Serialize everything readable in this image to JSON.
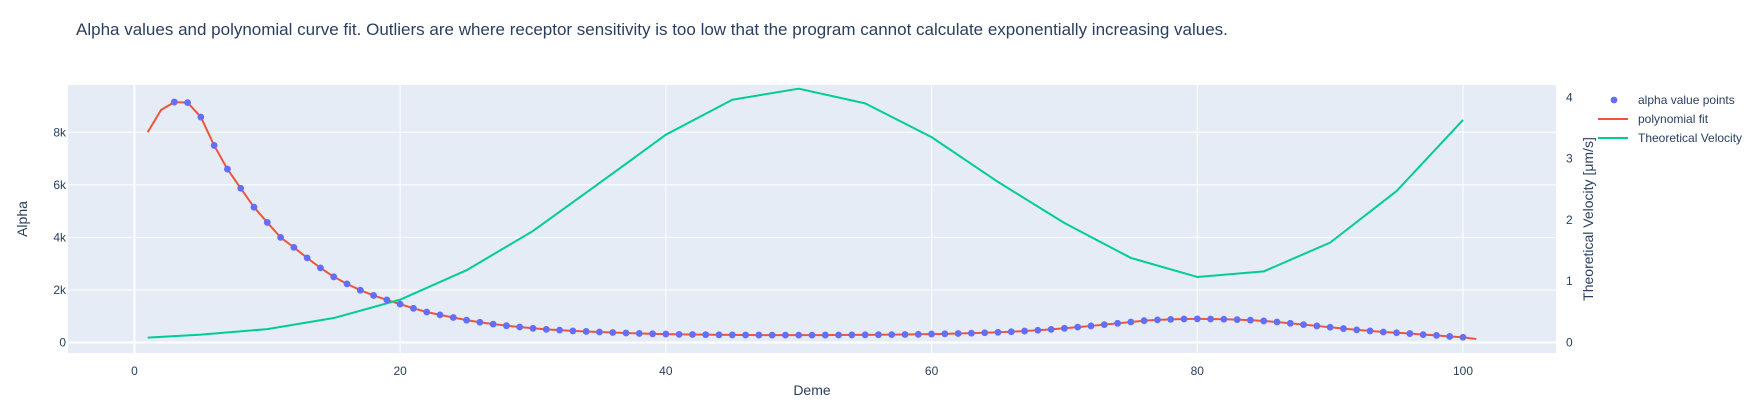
{
  "chart_data": {
    "type": "line",
    "title": "Alpha values and polynomial curve fit.  Outliers are where receptor sensitivity is too low that the program cannot calculate exponentially increasing values.",
    "xlabel": "Deme",
    "ylabel": "Alpha",
    "y2label": "Theoretical Velocity [μm/s]",
    "xlim": [
      -5,
      107
    ],
    "ylim": [
      -400,
      9800
    ],
    "y2lim": [
      -0.17,
      4.2
    ],
    "xticks": [
      0,
      20,
      40,
      60,
      80,
      100
    ],
    "xtick_labels": [
      "0",
      "20",
      "40",
      "60",
      "80",
      "100"
    ],
    "yticks": [
      0,
      2000,
      4000,
      6000,
      8000
    ],
    "ytick_labels": [
      "0",
      "2k",
      "4k",
      "6k",
      "8k"
    ],
    "y2ticks": [
      0,
      1,
      2,
      3,
      4
    ],
    "y2tick_labels": [
      "0",
      "1",
      "2",
      "3",
      "4"
    ],
    "grid": true,
    "legend_position": "top-right",
    "series": [
      {
        "name": "alpha value points",
        "kind": "markers",
        "axis": "y",
        "color": "#636efa",
        "x": [
          3,
          4,
          5,
          6,
          7,
          8,
          9,
          10,
          11,
          12,
          13,
          14,
          15,
          16,
          17,
          18,
          19,
          20,
          21,
          22,
          23,
          24,
          25,
          26,
          27,
          28,
          29,
          30,
          31,
          32,
          33,
          34,
          35,
          36,
          37,
          38,
          39,
          40,
          41,
          42,
          43,
          44,
          45,
          46,
          47,
          48,
          49,
          50,
          51,
          52,
          53,
          54,
          55,
          56,
          57,
          58,
          59,
          60,
          61,
          62,
          63,
          64,
          65,
          66,
          67,
          68,
          69,
          70,
          71,
          72,
          73,
          74,
          75,
          76,
          77,
          78,
          79,
          80,
          81,
          82,
          83,
          84,
          85,
          86,
          87,
          88,
          89,
          90,
          91,
          92,
          93,
          94,
          95,
          96,
          97,
          98,
          99,
          100
        ],
        "y": [
          9150,
          9130,
          8580,
          7500,
          6600,
          5870,
          5150,
          4570,
          4000,
          3620,
          3220,
          2840,
          2500,
          2230,
          1990,
          1790,
          1620,
          1460,
          1300,
          1160,
          1050,
          950,
          850,
          770,
          700,
          640,
          590,
          540,
          500,
          470,
          440,
          420,
          400,
          380,
          360,
          345,
          330,
          320,
          310,
          305,
          298,
          292,
          288,
          284,
          282,
          280,
          280,
          280,
          280,
          282,
          285,
          288,
          292,
          296,
          300,
          305,
          312,
          320,
          330,
          342,
          355,
          370,
          388,
          410,
          435,
          465,
          500,
          540,
          585,
          630,
          680,
          730,
          780,
          830,
          860,
          880,
          895,
          900,
          895,
          885,
          870,
          850,
          820,
          780,
          730,
          680,
          630,
          580,
          530,
          480,
          440,
          400,
          370,
          340,
          300,
          270,
          230,
          200
        ]
      },
      {
        "name": "polynomial fit",
        "kind": "line",
        "axis": "y",
        "color": "#ef553b",
        "x": [
          1,
          2,
          3,
          4,
          5,
          6,
          7,
          8,
          9,
          10,
          11,
          12,
          13,
          14,
          15,
          16,
          17,
          18,
          19,
          20,
          21,
          22,
          23,
          24,
          25,
          26,
          27,
          28,
          29,
          30,
          31,
          32,
          33,
          34,
          35,
          36,
          37,
          38,
          39,
          40,
          41,
          42,
          43,
          44,
          45,
          46,
          47,
          48,
          49,
          50,
          51,
          52,
          53,
          54,
          55,
          56,
          57,
          58,
          59,
          60,
          61,
          62,
          63,
          64,
          65,
          66,
          67,
          68,
          69,
          70,
          71,
          72,
          73,
          74,
          75,
          76,
          77,
          78,
          79,
          80,
          81,
          82,
          83,
          84,
          85,
          86,
          87,
          88,
          89,
          90,
          91,
          92,
          93,
          94,
          95,
          96,
          97,
          98,
          99,
          100,
          101
        ],
        "y": [
          8000,
          8850,
          9150,
          9130,
          8580,
          7500,
          6600,
          5870,
          5150,
          4570,
          4000,
          3620,
          3220,
          2840,
          2500,
          2230,
          1990,
          1790,
          1620,
          1460,
          1300,
          1160,
          1050,
          950,
          850,
          770,
          700,
          640,
          590,
          540,
          500,
          470,
          440,
          420,
          400,
          380,
          360,
          345,
          330,
          320,
          310,
          305,
          298,
          292,
          288,
          284,
          282,
          280,
          280,
          280,
          280,
          282,
          285,
          288,
          292,
          296,
          300,
          305,
          312,
          320,
          330,
          342,
          355,
          370,
          388,
          410,
          435,
          465,
          500,
          540,
          585,
          630,
          680,
          730,
          780,
          830,
          860,
          880,
          895,
          900,
          895,
          885,
          870,
          850,
          820,
          780,
          730,
          680,
          630,
          580,
          530,
          480,
          440,
          400,
          370,
          340,
          300,
          270,
          230,
          200,
          130
        ]
      },
      {
        "name": "Theoretical Velocity",
        "kind": "line",
        "axis": "y2",
        "color": "#00cc96",
        "x": [
          1,
          5,
          10,
          15,
          20,
          25,
          30,
          35,
          40,
          45,
          50,
          55,
          60,
          65,
          70,
          75,
          80,
          85,
          90,
          95,
          100
        ],
        "y": [
          0.08,
          0.13,
          0.22,
          0.4,
          0.7,
          1.18,
          1.82,
          2.6,
          3.39,
          3.96,
          4.14,
          3.9,
          3.35,
          2.62,
          1.95,
          1.38,
          1.07,
          1.16,
          1.63,
          2.47,
          3.63
        ]
      }
    ]
  }
}
